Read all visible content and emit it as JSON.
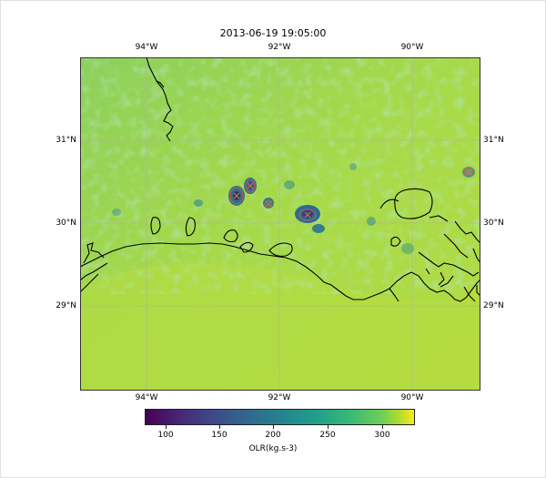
{
  "title": "2013-06-19 19:05:00",
  "longitude_labels": [
    "94°W",
    "92°W",
    "90°W"
  ],
  "latitude_labels": [
    "31°N",
    "30°N",
    "29°N"
  ],
  "colorbar": {
    "label": "OLR(kg.s-3)",
    "ticks": [
      "100",
      "150",
      "200",
      "250",
      "300"
    ],
    "colormap": "viridis"
  },
  "colors": {
    "background_field": "#8fd25a",
    "coast": "#000000",
    "gridlines": "#b0b0b0",
    "storm_contour": "#e05050"
  }
}
